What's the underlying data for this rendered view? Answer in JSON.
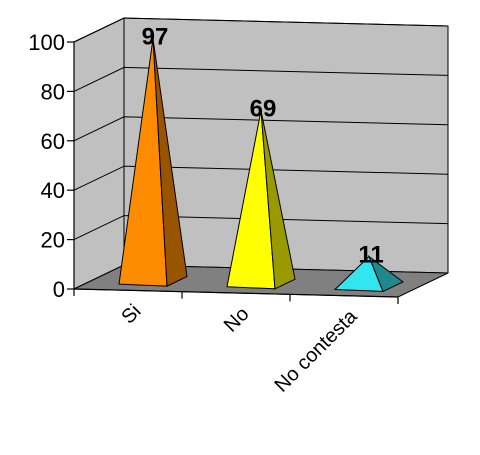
{
  "chart_data": {
    "type": "bar",
    "style": "3d-pyramid",
    "categories": [
      "Si",
      "No",
      "No contesta"
    ],
    "values": [
      97,
      69,
      11
    ],
    "data_labels": [
      "97",
      "69",
      "11"
    ],
    "ylim": [
      0,
      100
    ],
    "yticks": [
      0,
      20,
      40,
      60,
      80,
      100
    ],
    "ytick_labels": [
      "0",
      "20",
      "40",
      "60",
      "80",
      "100"
    ],
    "grid": true,
    "colors": {
      "Si": "#ff8c00",
      "No": "#ffff00",
      "No contesta": "#33e5ee",
      "walls": "#c0c0c0",
      "floor": "#808080"
    }
  }
}
